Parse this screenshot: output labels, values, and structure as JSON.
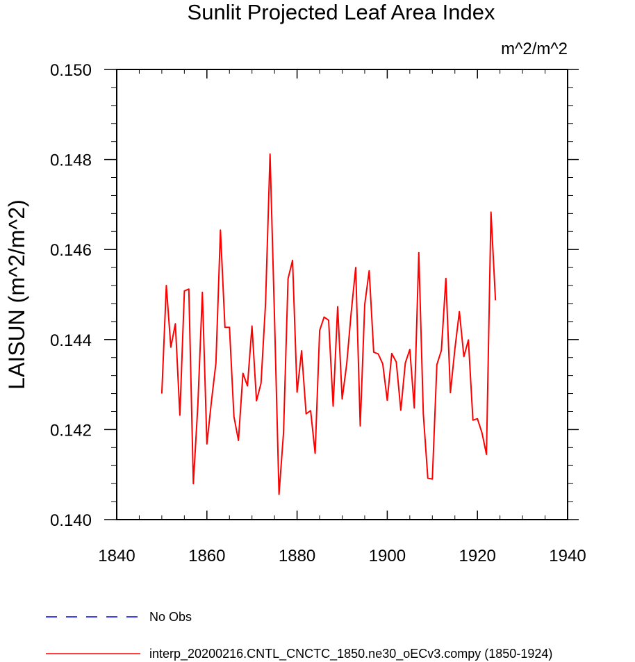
{
  "chart_data": {
    "type": "line",
    "title": "Sunlit Projected Leaf Area Index",
    "units": "m^2/m^2",
    "ylabel": "LAISUN  (m^2/m^2)",
    "xlabel": "",
    "xlim": [
      1840,
      1940
    ],
    "ylim": [
      0.14,
      0.15
    ],
    "xticks": [
      1840,
      1860,
      1880,
      1900,
      1920,
      1940
    ],
    "xtick_labels": [
      "1840",
      "1860",
      "1880",
      "1900",
      "1920",
      "1940"
    ],
    "yticks": [
      0.14,
      0.142,
      0.144,
      0.146,
      0.148,
      0.15
    ],
    "ytick_labels": [
      "0.140",
      "0.142",
      "0.144",
      "0.146",
      "0.148",
      "0.150"
    ],
    "grid": false,
    "legend_position": "bottom-left",
    "series": [
      {
        "name": "No Obs",
        "color": "#0000ff",
        "dash": "dashed",
        "x": [],
        "y": []
      },
      {
        "name": "interp_20200216.CNTL_CNCTC_1850.ne30_oECv3.compy (1850-1924)",
        "color": "#ff0000",
        "dash": "solid",
        "x": [
          1850,
          1851,
          1852,
          1853,
          1854,
          1855,
          1856,
          1857,
          1858,
          1859,
          1860,
          1861,
          1862,
          1863,
          1864,
          1865,
          1866,
          1867,
          1868,
          1869,
          1870,
          1871,
          1872,
          1873,
          1874,
          1875,
          1876,
          1877,
          1878,
          1879,
          1880,
          1881,
          1882,
          1883,
          1884,
          1885,
          1886,
          1887,
          1888,
          1889,
          1890,
          1891,
          1892,
          1893,
          1894,
          1895,
          1896,
          1897,
          1898,
          1899,
          1900,
          1901,
          1902,
          1903,
          1904,
          1905,
          1906,
          1907,
          1908,
          1909,
          1910,
          1911,
          1912,
          1913,
          1914,
          1915,
          1916,
          1917,
          1918,
          1919,
          1920,
          1921,
          1922,
          1923,
          1924
        ],
        "y": [
          0.1428,
          0.1452,
          0.14383,
          0.14435,
          0.14232,
          0.14508,
          0.14512,
          0.1408,
          0.14255,
          0.14505,
          0.14168,
          0.14262,
          0.14348,
          0.14643,
          0.14427,
          0.14427,
          0.14229,
          0.14176,
          0.14325,
          0.14297,
          0.1443,
          0.14264,
          0.14303,
          0.1448,
          0.14812,
          0.1445,
          0.14056,
          0.14193,
          0.14535,
          0.14576,
          0.14283,
          0.14375,
          0.14235,
          0.14242,
          0.14147,
          0.1442,
          0.1445,
          0.14443,
          0.14252,
          0.14473,
          0.14268,
          0.14345,
          0.1446,
          0.1456,
          0.14208,
          0.14478,
          0.14553,
          0.14372,
          0.14368,
          0.14346,
          0.14265,
          0.14369,
          0.1435,
          0.14243,
          0.14348,
          0.14378,
          0.14248,
          0.14593,
          0.14235,
          0.14092,
          0.1409,
          0.14344,
          0.14376,
          0.14536,
          0.14282,
          0.1438,
          0.14462,
          0.14362,
          0.14399,
          0.14221,
          0.14224,
          0.14193,
          0.14145,
          0.14683,
          0.14487
        ]
      }
    ]
  }
}
